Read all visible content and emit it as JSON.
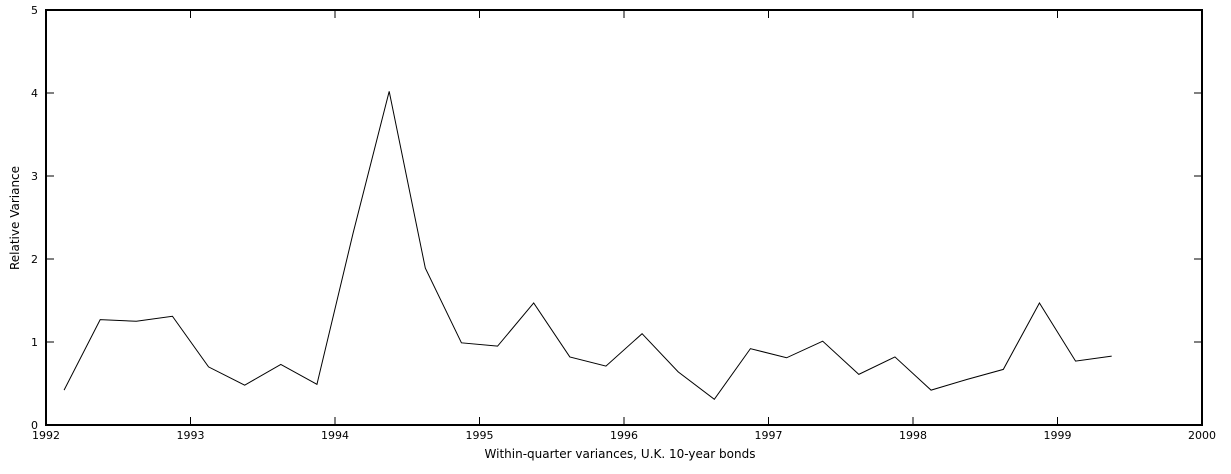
{
  "chart_data": {
    "type": "line",
    "x_label": "Within-quarter variances, U.K. 10-year bonds",
    "y_label": "Relative Variance",
    "x": [
      1992.125,
      1992.375,
      1992.625,
      1992.875,
      1993.125,
      1993.375,
      1993.625,
      1993.875,
      1994.125,
      1994.375,
      1994.625,
      1994.875,
      1995.125,
      1995.375,
      1995.625,
      1995.875,
      1996.125,
      1996.375,
      1996.625,
      1996.875,
      1997.125,
      1997.375,
      1997.625,
      1997.875,
      1998.125,
      1998.375,
      1998.625,
      1998.875,
      1999.125,
      1999.375
    ],
    "values": [
      0.42,
      1.27,
      1.25,
      1.31,
      0.7,
      0.48,
      0.73,
      0.49,
      2.31,
      4.02,
      1.89,
      0.99,
      0.95,
      1.47,
      0.82,
      0.71,
      1.1,
      0.64,
      0.31,
      0.92,
      0.81,
      1.01,
      0.61,
      0.82,
      0.42,
      0.55,
      0.67,
      1.47,
      0.77,
      0.83
    ],
    "color": "#000000",
    "xlim": [
      1992,
      2000
    ],
    "xticks": [
      1992,
      1993,
      1994,
      1995,
      1996,
      1997,
      1998,
      1999,
      2000
    ],
    "ylim": [
      0,
      5
    ],
    "yticks": [
      0,
      1,
      2,
      3,
      4,
      5
    ]
  }
}
